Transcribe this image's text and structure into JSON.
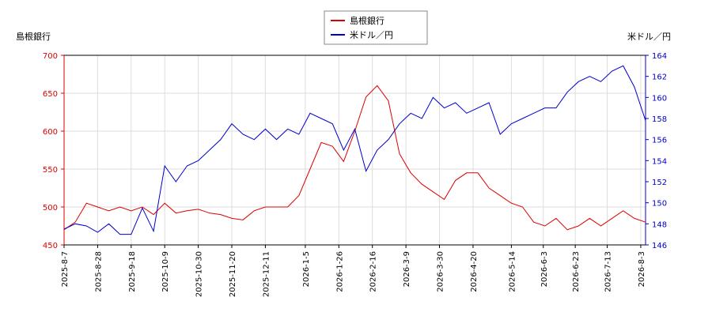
{
  "chart_data": {
    "type": "line",
    "y_label": "島根銀行",
    "y2_label": "米ドル／円",
    "x": [
      "2025-08-07",
      "2025-08-14",
      "2025-08-21",
      "2025-08-28",
      "2025-09-04",
      "2025-09-11",
      "2025-09-18",
      "2025-09-25",
      "2025-10-02",
      "2025-10-09",
      "2025-10-16",
      "2025-10-23",
      "2025-10-30",
      "2025-11-06",
      "2025-11-13",
      "2025-11-20",
      "2025-11-27",
      "2025-12-04",
      "2025-12-11",
      "2025-12-18",
      "2025-12-25",
      "2026-01-01",
      "2026-01-08",
      "2026-01-15",
      "2026-01-22",
      "2026-01-29",
      "2026-02-05",
      "2026-02-12",
      "2026-02-19",
      "2026-02-26",
      "2026-03-05",
      "2026-03-12",
      "2026-03-19",
      "2026-03-26",
      "2026-04-02",
      "2026-04-09",
      "2026-04-16",
      "2026-04-23",
      "2026-04-30",
      "2026-05-07",
      "2026-05-14",
      "2026-05-21",
      "2026-05-28",
      "2026-06-04",
      "2026-06-11",
      "2026-06-18",
      "2026-06-25",
      "2026-07-02",
      "2026-07-09",
      "2026-07-16",
      "2026-07-23",
      "2026-07-30",
      "2026-08-06"
    ],
    "series": [
      {
        "name": "島根銀行",
        "color": "#dd0000",
        "values": [
          470,
          480,
          505,
          500,
          495,
          500,
          495,
          500,
          490,
          505,
          492,
          495,
          497,
          492,
          490,
          485,
          483,
          495,
          500,
          500,
          500,
          515,
          550,
          585,
          580,
          560,
          600,
          645,
          660,
          640,
          570,
          545,
          530,
          520,
          510,
          535,
          545,
          545,
          525,
          515,
          505,
          500,
          480,
          475,
          485,
          470,
          475,
          485,
          475,
          485,
          495,
          485,
          480
        ]
      },
      {
        "name": "米ドル／円",
        "color": "#0000cc",
        "axis": "y2",
        "values": [
          147.5,
          148.0,
          147.8,
          147.2,
          148.0,
          147.0,
          147.0,
          149.5,
          147.3,
          153.5,
          152.0,
          153.5,
          154.0,
          155.0,
          156.0,
          157.5,
          156.5,
          156.0,
          157.0,
          156.0,
          157.0,
          156.5,
          158.5,
          158.0,
          157.5,
          155.0,
          157.0,
          153.0,
          155.0,
          156.0,
          157.5,
          158.5,
          158.0,
          160.0,
          159.0,
          159.5,
          158.5,
          159.0,
          159.5,
          156.5,
          157.5,
          158.0,
          158.5,
          159.0,
          159.0,
          160.5,
          161.5,
          162.0,
          161.5,
          162.5,
          163.0,
          161.0,
          157.8
        ]
      }
    ],
    "xlim": [
      "2025-08-07",
      "2026-08-06"
    ],
    "xticks": [
      {
        "value": "2025-08-07",
        "label": "2025-8-7"
      },
      {
        "value": "2025-08-28",
        "label": "2025-8-28"
      },
      {
        "value": "2025-09-18",
        "label": "2025-9-18"
      },
      {
        "value": "2025-10-09",
        "label": "2025-10-9"
      },
      {
        "value": "2025-10-30",
        "label": "2025-10-30"
      },
      {
        "value": "2025-11-20",
        "label": "2025-11-20"
      },
      {
        "value": "2025-12-11",
        "label": "2025-12-11"
      },
      {
        "value": "2026-01-05",
        "label": "2026-1-5"
      },
      {
        "value": "2026-01-26",
        "label": "2026-1-26"
      },
      {
        "value": "2026-02-16",
        "label": "2026-2-16"
      },
      {
        "value": "2026-03-09",
        "label": "2026-3-9"
      },
      {
        "value": "2026-03-30",
        "label": "2026-3-30"
      },
      {
        "value": "2026-04-20",
        "label": "2026-4-20"
      },
      {
        "value": "2026-05-14",
        "label": "2026-5-14"
      },
      {
        "value": "2026-06-03",
        "label": "2026-6-3"
      },
      {
        "value": "2026-06-23",
        "label": "2026-6-23"
      },
      {
        "value": "2026-07-13",
        "label": "2026-7-13"
      },
      {
        "value": "2026-08-03",
        "label": "2026-8-3"
      }
    ],
    "ylim": [
      450,
      700
    ],
    "yticks": [
      450,
      500,
      550,
      600,
      650,
      700
    ],
    "y2lim": [
      146,
      164
    ],
    "y2ticks": [
      146,
      148,
      150,
      152,
      154,
      156,
      158,
      160,
      162,
      164
    ],
    "grid": true,
    "legend": "top"
  }
}
